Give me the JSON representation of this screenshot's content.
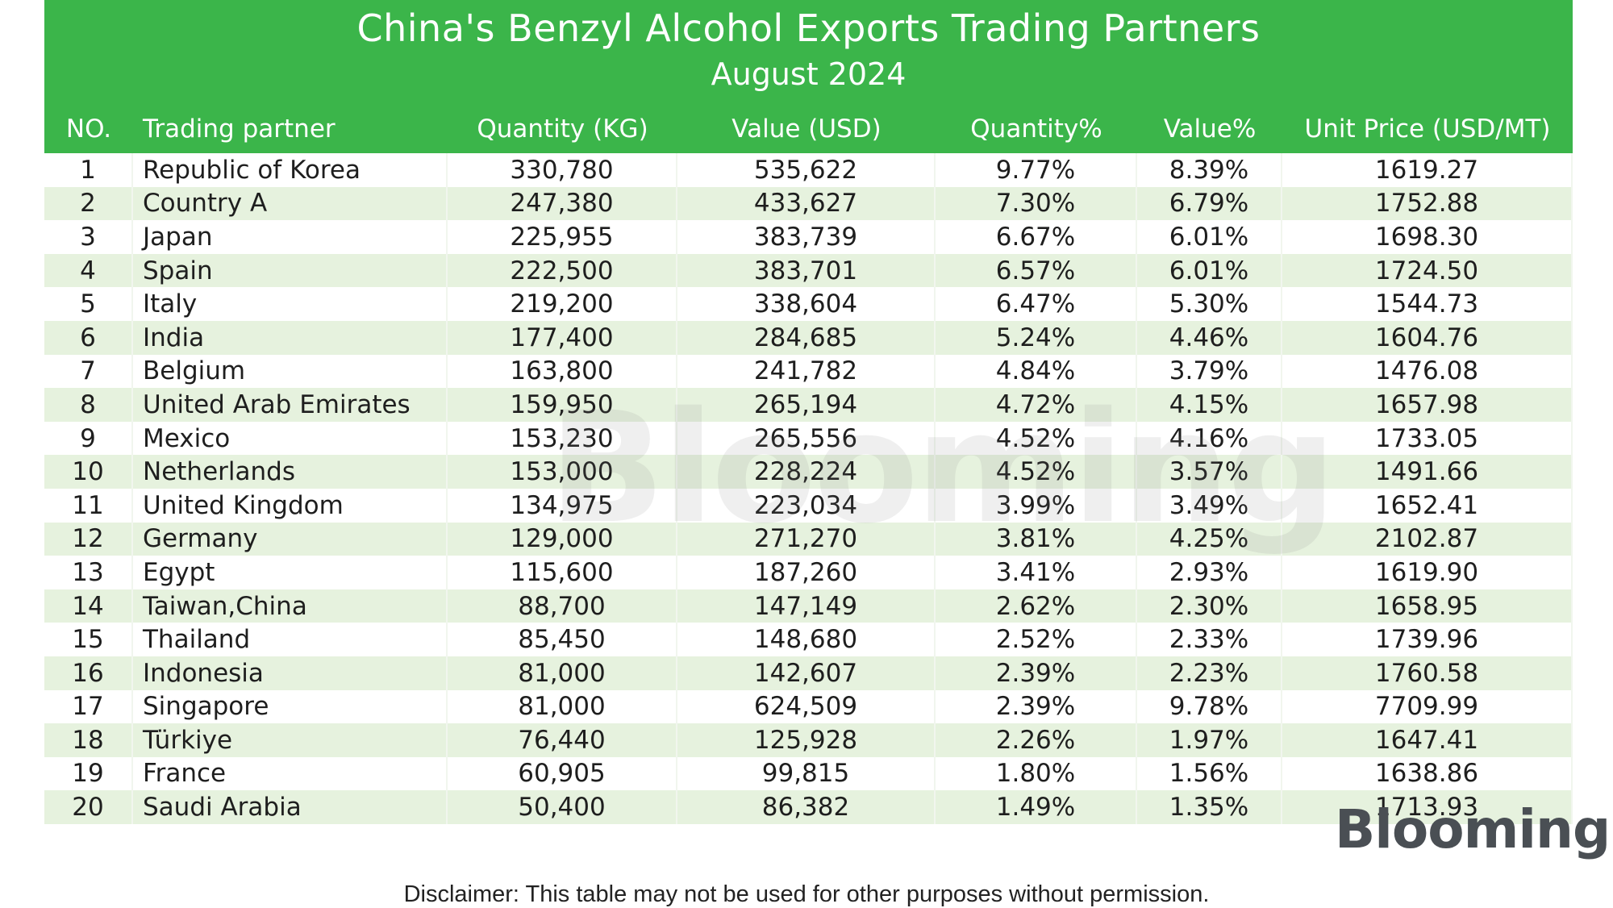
{
  "chart_data": {
    "type": "table",
    "title": "China's Benzyl Alcohol Exports Trading Partners",
    "subtitle": "August 2024",
    "columns": [
      "NO.",
      "Trading partner",
      "Quantity (KG)",
      "Value (USD)",
      "Quantity%",
      "Value%",
      "Unit Price (USD/MT)"
    ],
    "rows": [
      [
        "1",
        "Republic of Korea",
        "330,780",
        "535,622",
        "9.77%",
        "8.39%",
        "1619.27"
      ],
      [
        "2",
        "Country A",
        "247,380",
        "433,627",
        "7.30%",
        "6.79%",
        "1752.88"
      ],
      [
        "3",
        "Japan",
        "225,955",
        "383,739",
        "6.67%",
        "6.01%",
        "1698.30"
      ],
      [
        "4",
        "Spain",
        "222,500",
        "383,701",
        "6.57%",
        "6.01%",
        "1724.50"
      ],
      [
        "5",
        "Italy",
        "219,200",
        "338,604",
        "6.47%",
        "5.30%",
        "1544.73"
      ],
      [
        "6",
        "India",
        "177,400",
        "284,685",
        "5.24%",
        "4.46%",
        "1604.76"
      ],
      [
        "7",
        "Belgium",
        "163,800",
        "241,782",
        "4.84%",
        "3.79%",
        "1476.08"
      ],
      [
        "8",
        "United Arab Emirates",
        "159,950",
        "265,194",
        "4.72%",
        "4.15%",
        "1657.98"
      ],
      [
        "9",
        "Mexico",
        "153,230",
        "265,556",
        "4.52%",
        "4.16%",
        "1733.05"
      ],
      [
        "10",
        "Netherlands",
        "153,000",
        "228,224",
        "4.52%",
        "3.57%",
        "1491.66"
      ],
      [
        "11",
        "United Kingdom",
        "134,975",
        "223,034",
        "3.99%",
        "3.49%",
        "1652.41"
      ],
      [
        "12",
        "Germany",
        "129,000",
        "271,270",
        "3.81%",
        "4.25%",
        "2102.87"
      ],
      [
        "13",
        "Egypt",
        "115,600",
        "187,260",
        "3.41%",
        "2.93%",
        "1619.90"
      ],
      [
        "14",
        "Taiwan,China",
        "88,700",
        "147,149",
        "2.62%",
        "2.30%",
        "1658.95"
      ],
      [
        "15",
        "Thailand",
        "85,450",
        "148,680",
        "2.52%",
        "2.33%",
        "1739.96"
      ],
      [
        "16",
        "Indonesia",
        "81,000",
        "142,607",
        "2.39%",
        "2.23%",
        "1760.58"
      ],
      [
        "17",
        "Singapore",
        "81,000",
        "624,509",
        "2.39%",
        "9.78%",
        "7709.99"
      ],
      [
        "18",
        "Türkiye",
        "76,440",
        "125,928",
        "2.26%",
        "1.97%",
        "1647.41"
      ],
      [
        "19",
        "France",
        "60,905",
        "99,815",
        "1.80%",
        "1.56%",
        "1638.86"
      ],
      [
        "20",
        "Saudi Arabia",
        "50,400",
        "86,382",
        "1.49%",
        "1.35%",
        "1713.93"
      ]
    ]
  },
  "branding": {
    "watermark": "Blooming",
    "logo": "Blooming"
  },
  "footer": {
    "disclaimer": "Disclaimer: This table may not be used for other purposes without permission."
  },
  "colors": {
    "header_green": "#3bb54a",
    "row_stripe": "#e6f2de"
  }
}
